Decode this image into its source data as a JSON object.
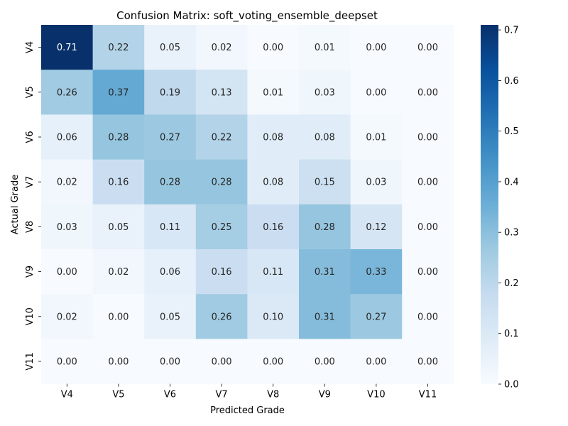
{
  "chart_data": {
    "type": "heatmap",
    "title": "Confusion Matrix: soft_voting_ensemble_deepset",
    "xlabel": "Predicted Grade",
    "ylabel": "Actual Grade",
    "x_categories": [
      "V4",
      "V5",
      "V6",
      "V7",
      "V8",
      "V9",
      "V10",
      "V11"
    ],
    "y_categories": [
      "V4",
      "V5",
      "V6",
      "V7",
      "V8",
      "V9",
      "V10",
      "V11"
    ],
    "values": [
      [
        0.71,
        0.22,
        0.05,
        0.02,
        0.0,
        0.01,
        0.0,
        0.0
      ],
      [
        0.26,
        0.37,
        0.19,
        0.13,
        0.01,
        0.03,
        0.0,
        0.0
      ],
      [
        0.06,
        0.28,
        0.27,
        0.22,
        0.08,
        0.08,
        0.01,
        0.0
      ],
      [
        0.02,
        0.16,
        0.28,
        0.28,
        0.08,
        0.15,
        0.03,
        0.0
      ],
      [
        0.03,
        0.05,
        0.11,
        0.25,
        0.16,
        0.28,
        0.12,
        0.0
      ],
      [
        0.0,
        0.02,
        0.06,
        0.16,
        0.11,
        0.31,
        0.33,
        0.0
      ],
      [
        0.02,
        0.0,
        0.05,
        0.26,
        0.1,
        0.31,
        0.27,
        0.0
      ],
      [
        0.0,
        0.0,
        0.0,
        0.0,
        0.0,
        0.0,
        0.0,
        0.0
      ]
    ],
    "colorbar": {
      "range": [
        0,
        0.71
      ],
      "ticks": [
        "0.0",
        "0.1",
        "0.2",
        "0.3",
        "0.4",
        "0.5",
        "0.6",
        "0.7"
      ],
      "colormap": "Blues"
    },
    "grid": false
  }
}
